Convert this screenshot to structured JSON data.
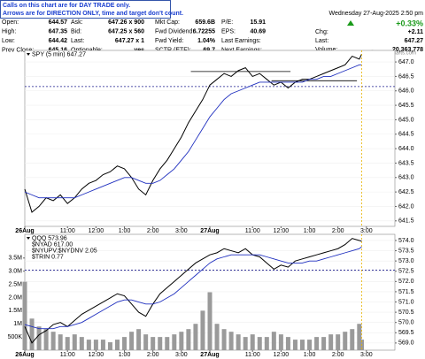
{
  "header": {
    "notice": [
      "Calls on this chart are for DAY TRADE only.",
      "Arrows are for DIRECTION ONLY, time and target don't count."
    ],
    "rows": [
      [
        "Open:",
        "644.57",
        "Ask:",
        "647.26 x 900",
        "Mkt Cap:",
        "659.6B",
        "P/E:",
        "15.91"
      ],
      [
        "High:",
        "647.35",
        "Bid:",
        "647.25 x 560",
        "Fwd Dividend:",
        "6.72255",
        "EPS:",
        "40.69"
      ],
      [
        "Low:",
        "644.42",
        "Last:",
        "647.27 x 1",
        "Fwd Yield:",
        "1.04%",
        "Last Earnings:"
      ],
      [
        "Prev Close:",
        "645.16",
        "Optionable:",
        "yes",
        "SCTR (ETF):",
        "69.7",
        "Next Earnings:"
      ]
    ],
    "date": "Wednesday 27-Aug-2025 2:50 pm",
    "change_pct": "+0.33%",
    "quote": [
      [
        "Chg:",
        "+2.11"
      ],
      [
        "Last:",
        "647.27"
      ],
      [
        "Volume:",
        "20,363,778"
      ]
    ],
    "credit": "© StockCharts.com"
  },
  "chart_data": [
    {
      "type": "line",
      "legend": [
        "SPY (5 min) 647.27"
      ],
      "x": [
        0,
        3,
        6,
        9,
        12,
        15,
        18,
        21,
        24,
        27,
        30,
        33,
        36,
        39,
        42,
        45,
        48,
        51,
        54,
        57,
        60,
        63,
        66,
        69,
        72,
        75,
        78,
        81,
        84,
        87,
        90,
        93,
        96,
        99,
        102,
        105,
        108,
        111,
        114,
        117,
        120,
        123,
        126,
        129,
        132,
        135,
        138,
        141,
        142
      ],
      "series": [
        {
          "color": "#000000",
          "values": [
            642.6,
            641.8,
            642.0,
            642.3,
            642.2,
            642.4,
            642.1,
            642.3,
            642.6,
            642.8,
            642.9,
            643.1,
            643.2,
            643.4,
            643.3,
            643.0,
            642.6,
            642.4,
            642.9,
            643.3,
            643.6,
            644.0,
            644.4,
            644.9,
            645.3,
            645.7,
            646.2,
            646.4,
            646.6,
            646.5,
            646.7,
            646.8,
            646.5,
            646.6,
            646.4,
            646.2,
            646.3,
            646.1,
            646.3,
            646.4,
            646.4,
            646.5,
            646.6,
            646.7,
            646.8,
            646.9,
            647.2,
            647.1,
            647.27
          ]
        },
        {
          "color": "#1f2fbf",
          "values": [
            642.5,
            642.4,
            642.3,
            642.3,
            642.3,
            642.3,
            642.3,
            642.3,
            642.4,
            642.5,
            642.6,
            642.7,
            642.8,
            642.9,
            643.0,
            643.0,
            642.9,
            642.8,
            642.8,
            642.9,
            643.1,
            643.3,
            643.6,
            643.9,
            644.3,
            644.7,
            645.1,
            645.4,
            645.7,
            645.9,
            646.0,
            646.1,
            646.2,
            646.3,
            646.3,
            646.3,
            646.3,
            646.3,
            646.3,
            646.3,
            646.4,
            646.4,
            646.5,
            646.5,
            646.6,
            646.7,
            646.8,
            646.9,
            646.9
          ]
        }
      ],
      "levels": [
        {
          "value": 646.67,
          "x": [
            70,
            112
          ],
          "color": "#000000"
        },
        {
          "value": 646.35,
          "x": [
            104,
            140
          ],
          "color": "#000000"
        },
        {
          "value": 646.15,
          "color": "#1a1a8c",
          "dashed": true
        }
      ],
      "marker_x": 142,
      "xlim": [
        0,
        156
      ],
      "xticks": [
        {
          "value": 0,
          "label": "26Aug"
        },
        {
          "value": 18,
          "label": "11:00"
        },
        {
          "value": 30,
          "label": "12:00"
        },
        {
          "value": 42,
          "label": "1:00"
        },
        {
          "value": 54,
          "label": "2:00"
        },
        {
          "value": 66,
          "label": "3:00"
        },
        {
          "value": 78,
          "label": "27Aug"
        },
        {
          "value": 96,
          "label": "11:00"
        },
        {
          "value": 108,
          "label": "12:00"
        },
        {
          "value": 120,
          "label": "1:00"
        },
        {
          "value": 132,
          "label": "2:00"
        },
        {
          "value": 144,
          "label": "3:00"
        }
      ],
      "ylim": [
        641.31,
        647.4
      ],
      "yticks": [
        {
          "value": 647,
          "label": "647.0"
        },
        {
          "value": 646.5,
          "label": "646.5"
        },
        {
          "value": 646,
          "label": "646.0"
        },
        {
          "value": 645.5,
          "label": "645.5"
        },
        {
          "value": 645,
          "label": "645.0"
        },
        {
          "value": 644.5,
          "label": "644.5"
        },
        {
          "value": 644,
          "label": "644.0"
        },
        {
          "value": 643.5,
          "label": "643.5"
        },
        {
          "value": 643,
          "label": "643.0"
        },
        {
          "value": 642.5,
          "label": "642.5"
        },
        {
          "value": 642,
          "label": "642.0"
        },
        {
          "value": 641.5,
          "label": "641.5"
        }
      ],
      "grid": true
    },
    {
      "type": "line",
      "legend": [
        "QQQ 573.96",
        "$NYAD 617.00",
        "$NYUPV:$NYDNV 2.05",
        "$TRIN 0.77"
      ],
      "x": [
        0,
        3,
        6,
        9,
        12,
        15,
        18,
        21,
        24,
        27,
        30,
        33,
        36,
        39,
        42,
        45,
        48,
        51,
        54,
        57,
        60,
        63,
        66,
        69,
        72,
        75,
        78,
        81,
        84,
        87,
        90,
        93,
        96,
        99,
        102,
        105,
        108,
        111,
        114,
        117,
        120,
        123,
        126,
        129,
        132,
        135,
        138,
        141,
        142
      ],
      "series": [
        {
          "color": "#000000",
          "values": [
            569.8,
            569.0,
            569.4,
            569.6,
            569.9,
            570.0,
            569.8,
            570.1,
            570.4,
            570.6,
            570.8,
            571.0,
            571.2,
            571.4,
            571.3,
            570.9,
            570.5,
            570.3,
            570.9,
            571.4,
            571.7,
            572.0,
            572.3,
            572.6,
            572.9,
            573.1,
            573.3,
            573.4,
            573.6,
            573.5,
            573.4,
            573.6,
            573.3,
            573.2,
            572.9,
            572.6,
            572.8,
            572.7,
            573.0,
            573.1,
            573.2,
            573.3,
            573.4,
            573.5,
            573.6,
            573.8,
            574.1,
            574.0,
            573.96
          ]
        },
        {
          "color": "#1f2fbf",
          "values": [
            569.9,
            569.8,
            569.7,
            569.7,
            569.7,
            569.8,
            569.8,
            569.9,
            570.0,
            570.2,
            570.4,
            570.6,
            570.8,
            571.0,
            571.1,
            571.1,
            571.0,
            570.9,
            570.9,
            571.0,
            571.2,
            571.4,
            571.7,
            572.0,
            572.3,
            572.6,
            572.9,
            573.1,
            573.2,
            573.3,
            573.3,
            573.3,
            573.3,
            573.3,
            573.2,
            573.1,
            573.0,
            572.9,
            572.9,
            572.9,
            573.0,
            573.0,
            573.1,
            573.2,
            573.3,
            573.4,
            573.5,
            573.6,
            573.7
          ]
        },
        {
          "color": "#9a9a9a",
          "type": "bar",
          "axis": "y2",
          "values": [
            2600000,
            1200000,
            900000,
            800000,
            700000,
            600000,
            500000,
            600000,
            500000,
            400000,
            400000,
            400000,
            300000,
            400000,
            500000,
            700000,
            800000,
            600000,
            500000,
            500000,
            500000,
            600000,
            700000,
            800000,
            1000000,
            1500000,
            2200000,
            1000000,
            800000,
            700000,
            600000,
            500000,
            600000,
            500000,
            500000,
            700000,
            600000,
            500000,
            400000,
            400000,
            400000,
            500000,
            500000,
            600000,
            600000,
            700000,
            800000,
            1000000,
            400000
          ]
        }
      ],
      "levels": [
        {
          "value": 572.55,
          "color": "#1a1a8c",
          "dashed": true
        }
      ],
      "marker_x": 142,
      "xlim": [
        0,
        156
      ],
      "xticks": [
        {
          "value": 0,
          "label": "26Aug"
        },
        {
          "value": 18,
          "label": "11:00"
        },
        {
          "value": 30,
          "label": "12:00"
        },
        {
          "value": 42,
          "label": "1:00"
        },
        {
          "value": 54,
          "label": "2:00"
        },
        {
          "value": 66,
          "label": "3:00"
        },
        {
          "value": 78,
          "label": "27Aug"
        },
        {
          "value": 96,
          "label": "11:00"
        },
        {
          "value": 108,
          "label": "12:00"
        },
        {
          "value": 120,
          "label": "1:00"
        },
        {
          "value": 132,
          "label": "2:00"
        },
        {
          "value": 144,
          "label": "3:00"
        }
      ],
      "ylim": [
        568.65,
        574.3
      ],
      "yticks": [
        {
          "value": 574,
          "label": "574.0"
        },
        {
          "value": 573.5,
          "label": "573.5"
        },
        {
          "value": 573,
          "label": "573.0"
        },
        {
          "value": 572.5,
          "label": "572.5"
        },
        {
          "value": 572,
          "label": "572.0"
        },
        {
          "value": 571.5,
          "label": "571.5"
        },
        {
          "value": 571,
          "label": "571.0"
        },
        {
          "value": 570.5,
          "label": "570.5"
        },
        {
          "value": 570,
          "label": "570.0"
        },
        {
          "value": 569.5,
          "label": "569.5"
        },
        {
          "value": 569,
          "label": "569.0"
        }
      ],
      "y2lim": [
        0,
        4400000
      ],
      "y2ticks": [
        {
          "value": 3500000,
          "label": "3.5M"
        },
        {
          "value": 3000000,
          "label": "3.0M"
        },
        {
          "value": 2500000,
          "label": "2.5M"
        },
        {
          "value": 2000000,
          "label": "2.0M"
        },
        {
          "value": 1500000,
          "label": "1.5M"
        },
        {
          "value": 1000000,
          "label": "1M"
        },
        {
          "value": 500000,
          "label": "500K"
        }
      ],
      "grid": true
    }
  ]
}
